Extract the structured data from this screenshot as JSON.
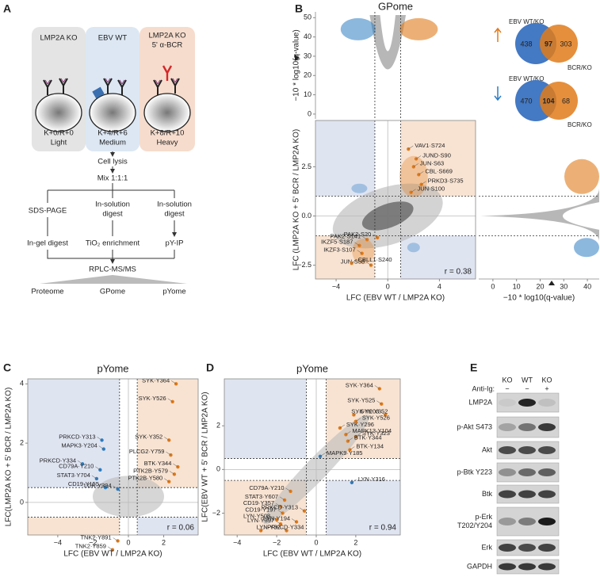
{
  "panel_labels": [
    "A",
    "B",
    "C",
    "D",
    "E"
  ],
  "diagram": {
    "conditions": [
      {
        "name": [
          "LMP2A KO"
        ],
        "label": "K+0/R+0",
        "tag": "Light"
      },
      {
        "name": [
          "EBV WT"
        ],
        "label": "K+4/R+6",
        "tag": "Medium"
      },
      {
        "name": [
          "LMP2A KO",
          "5' α-BCR"
        ],
        "label": "K+8/R+10",
        "tag": "Heavy"
      }
    ],
    "steps": [
      "Cell lysis",
      "Mix 1:1:1"
    ],
    "branches": [
      {
        "prep": [
          "SDS-PAGE"
        ],
        "enrich": "In-gel digest",
        "output": "Proteome"
      },
      {
        "prep": [
          "In-solution",
          "digest"
        ],
        "enrich": "TiO₂ enrichment",
        "output": "GPome"
      },
      {
        "prep": [
          "In-solution",
          "digest"
        ],
        "enrich": "pY-IP",
        "output": "pYome"
      }
    ],
    "analysis": "RPLC-MS/MS"
  },
  "chart_data": [
    {
      "type": "scatter",
      "xlabel": "LFC (EBV WT / LMP2A KO)",
      "ylabel": "LFC (LMP2A KO + 5' BCR / LMP2A KO)",
      "xlim": [
        -5.6,
        6.8
      ],
      "ylim": [
        -3.2,
        4.85
      ],
      "xticks": [
        {
          "value": -4,
          "label": "−4"
        },
        0,
        4
      ],
      "yticks": [
        {
          "value": -2.5,
          "label": "−2.5"
        },
        {
          "value": 0,
          "label": "0.0"
        },
        2.5
      ],
      "vlines": [
        -1,
        1
      ],
      "hlines": [
        -1,
        1
      ],
      "zero_lines": true,
      "frame": true,
      "quadrant_colors": {
        "upper_left": "#dfe4f1",
        "upper_right": "#f8e3d2",
        "lower_left": "#f8e3d2",
        "lower_right": "#dfe4f1"
      },
      "annotation": "r = 0.38",
      "series": [
        {
          "color": "#e07b1a",
          "x": [
            1.6,
            2.2,
            2.0,
            2.4,
            2.6,
            1.8,
            -1.6,
            -0.8,
            -2.2,
            -2.0,
            -1.3,
            -2.8
          ],
          "values": [
            3.4,
            2.9,
            2.5,
            2.1,
            1.6,
            1.2,
            -1.2,
            -1.1,
            -1.5,
            -1.9,
            -2.5,
            -2.4
          ],
          "labels": [
            "VAV1·S724",
            "JUND·S90",
            "JUN·S63",
            "CBL·S669",
            "PRKD3·S735",
            "JUN·S100",
            "PAK2·S141",
            "PAK2·S20",
            "IKZF5·S187",
            "IKZF3·S107",
            "JUN·S58",
            "CBLL1·S240"
          ]
        }
      ]
    },
    {
      "type": "scatter",
      "title": "GPome",
      "ylabel": "−10 * log10(q-value)",
      "xlim": [
        -5.6,
        6.8
      ],
      "ylim": [
        -2.5,
        53
      ],
      "yticks": [
        0,
        10,
        20,
        30,
        40,
        50
      ],
      "vlines": [
        -1,
        1
      ],
      "frame": false
    },
    {
      "type": "scatter",
      "xlabel": "−10 * log10(q-value)",
      "xlim": [
        -6,
        45
      ],
      "ylim": [
        -3.2,
        4.85
      ],
      "xticks": [
        0,
        10,
        20,
        30,
        40
      ],
      "hlines": [
        -1,
        1
      ],
      "frame": false
    },
    {
      "type": "scatter",
      "title": "pYome",
      "xlabel": "LFC (EBV WT / LMP2A KO)",
      "ylabel": "LFC(LMP2A KO + 5' BCR / LMP2A KO)",
      "xlim": [
        -5.7,
        3.95
      ],
      "ylim": [
        -1.1,
        4.17
      ],
      "xticks": [
        {
          "value": -4,
          "label": "−4"
        },
        {
          "value": -2,
          "label": "−2"
        },
        0,
        2
      ],
      "yticks": [
        0,
        2,
        4
      ],
      "vlines": [
        -0.5,
        0.5
      ],
      "hlines": [
        -0.5,
        0.5
      ],
      "zero_lines": true,
      "frame": true,
      "quadrant_colors": {
        "upper_left": "#dfe4f1",
        "upper_right": "#f8e3d2",
        "lower_left": "#f8e3d2",
        "lower_right": "#dfe4f1"
      },
      "annotation": "r = 0.06",
      "series": [
        {
          "color": "#e07b1a",
          "x": [
            2.7,
            2.5,
            2.3,
            2.4,
            2.8,
            2.6,
            2.3,
            -0.6,
            -0.9
          ],
          "values": [
            4.0,
            3.4,
            2.1,
            1.6,
            1.2,
            0.95,
            0.7,
            -1.3,
            -1.6
          ],
          "labels": [
            "SYK·Y364",
            "SYK·Y526",
            "SYK·Y352",
            "PLCG2·Y759",
            "BTK·Y344",
            "PTK2B·Y579",
            "PTK2B·Y580",
            "TNK2·Y891",
            "TNK2·Y859"
          ]
        },
        {
          "color": "#2d7ec2",
          "x": [
            -1.5,
            -1.4,
            -2.6,
            -1.6,
            -1.8,
            -1.3,
            -0.6
          ],
          "values": [
            2.1,
            1.8,
            1.3,
            1.1,
            0.8,
            0.5,
            0.45
          ],
          "labels": [
            "PRKCD·Y313",
            "MAPK3·Y204",
            "PRKCD·Y334",
            "CD79A·Y210",
            "STAT3·Y704",
            "CD19·Y155",
            "LCK·Y394"
          ]
        }
      ]
    },
    {
      "type": "scatter",
      "title": "pYome",
      "xlabel": "LFC (EBV WT / LMP2A KO)",
      "ylabel": "LFC(EBV WT + 5' BCR / LMP2A KO)",
      "xlim": [
        -4.65,
        4.25
      ],
      "ylim": [
        -3.0,
        4.15
      ],
      "xticks": [
        {
          "value": -4,
          "label": "−4"
        },
        {
          "value": -2,
          "label": "−2"
        },
        0,
        2
      ],
      "yticks": [
        {
          "value": -2,
          "label": "−2"
        },
        0,
        2
      ],
      "vlines": [
        -0.5,
        0.5
      ],
      "hlines": [
        -0.5,
        0.5
      ],
      "zero_lines": true,
      "frame": true,
      "quadrant_colors": {
        "upper_left": "#dfe4f1",
        "upper_right": "#f8e3d2",
        "lower_left": "#f8e3d2",
        "lower_right": "#dfe4f1"
      },
      "annotation": "r = 0.94",
      "series": [
        {
          "color": "#e07b1a",
          "x": [
            3.2,
            3.3,
            3.5,
            1.9,
            2.0,
            1.2,
            1.5,
            2.0,
            1.6,
            1.7,
            -1.3,
            -1.6,
            -1.8,
            -1.7,
            -2.0,
            -1.8,
            -1.0,
            -0.6,
            -2.8,
            -1.5
          ],
          "values": [
            3.7,
            3.0,
            2.5,
            2.5,
            2.2,
            1.9,
            1.6,
            1.5,
            1.3,
            0.9,
            -1.0,
            -1.4,
            -1.7,
            -2.0,
            -2.3,
            -2.5,
            -2.4,
            -1.9,
            -2.8,
            -2.8
          ],
          "labels": [
            "SYK·Y364",
            "SYK·Y525",
            "SYK·Y203",
            "SYK·Y352",
            "SYK·Y526",
            "SYK·Y296",
            "MAPK13·Y104",
            "SYK·Y323",
            "BTK·Y344",
            "BTK·Y134",
            "CD79A·Y210",
            "STAT3·Y607",
            "CD19·Y357",
            "CD19·Y197",
            "LYN·Y508",
            "LYN·Y397",
            "LYN·Y194",
            "PRKCD·Y313",
            "PRKCD·Y334",
            "LYN·Y32"
          ]
        },
        {
          "color": "#2d7ec2",
          "x": [
            0.2,
            1.8
          ],
          "values": [
            0.6,
            -0.6
          ],
          "labels": [
            "MAPK9·Y185",
            "LYN·Y316"
          ]
        }
      ]
    }
  ],
  "venn": [
    {
      "set_a": "EBV WT/KO",
      "set_b": "BCR/KO",
      "a_only": 438,
      "both": 97,
      "b_only": 303
    },
    {
      "set_a": "EBV WT/KO",
      "set_b": "BCR/KO",
      "a_only": 470,
      "both": 104,
      "b_only": 68
    }
  ],
  "blot": {
    "lanes": [
      "KO",
      "WT",
      "KO"
    ],
    "treatment_label": "Anti-Ig:",
    "treatment": [
      "−",
      "−",
      "+"
    ],
    "rows": [
      [
        "LMP2A"
      ],
      [
        "p-Akt S473"
      ],
      [
        "Akt"
      ],
      [
        "p-Btk Y223"
      ],
      [
        "Btk"
      ],
      [
        "p-Erk",
        "T202/Y204"
      ],
      [
        "Erk"
      ],
      [
        "GAPDH"
      ]
    ]
  }
}
